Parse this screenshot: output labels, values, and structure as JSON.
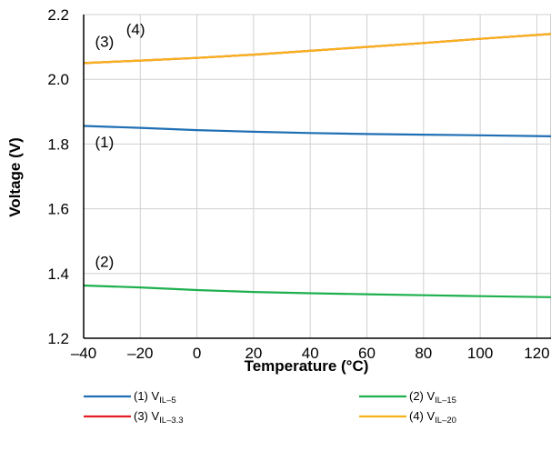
{
  "chart_data": {
    "type": "line",
    "xlabel": "Temperature (°C)",
    "ylabel": "Voltage (V)",
    "xlim": [
      -40,
      125
    ],
    "ylim": [
      1.2,
      2.2
    ],
    "x_ticks": [
      -40,
      -20,
      0,
      20,
      40,
      60,
      80,
      100,
      120
    ],
    "x_tick_labels": [
      "–40",
      "–20",
      "0",
      "20",
      "40",
      "60",
      "80",
      "100",
      "120"
    ],
    "y_ticks": [
      1.2,
      1.4,
      1.6,
      1.8,
      2.0,
      2.2
    ],
    "y_tick_labels": [
      "1.2",
      "1.4",
      "1.6",
      "1.8",
      "2.0",
      "2.2"
    ],
    "grid": true,
    "legend_position": "bottom",
    "series": [
      {
        "name": "(1) VIL–5",
        "label_main": "(1) V",
        "label_sub": "IL–5",
        "color": "#1f6fb4",
        "x": [
          -40,
          -20,
          0,
          20,
          40,
          60,
          80,
          100,
          125
        ],
        "y": [
          1.856,
          1.85,
          1.843,
          1.838,
          1.834,
          1.831,
          1.829,
          1.827,
          1.824
        ]
      },
      {
        "name": "(2) VIL–15",
        "label_main": "(2) V",
        "label_sub": "IL–15",
        "color": "#1db04d",
        "x": [
          -40,
          -20,
          0,
          20,
          40,
          60,
          80,
          100,
          125
        ],
        "y": [
          1.363,
          1.357,
          1.349,
          1.343,
          1.339,
          1.336,
          1.333,
          1.33,
          1.327
        ]
      },
      {
        "name": "(3) VIL–3.3",
        "label_main": "(3) V",
        "label_sub": "IL–3.3",
        "color": "#e41e26",
        "x": [
          -40,
          -20,
          0,
          20,
          40,
          60,
          80,
          100,
          125
        ],
        "y": [
          2.05,
          2.058,
          2.066,
          2.076,
          2.088,
          2.1,
          2.112,
          2.125,
          2.14
        ]
      },
      {
        "name": "(4) VIL–20",
        "label_main": "(4) V",
        "label_sub": "IL–20",
        "color": "#f7b21b",
        "x": [
          -40,
          -20,
          0,
          20,
          40,
          60,
          80,
          100,
          125
        ],
        "y": [
          2.05,
          2.058,
          2.066,
          2.076,
          2.088,
          2.1,
          2.112,
          2.125,
          2.14
        ]
      }
    ],
    "annotations": [
      {
        "text": "(1)",
        "x": -36,
        "y": 1.79
      },
      {
        "text": "(2)",
        "x": -36,
        "y": 1.42
      },
      {
        "text": "(3)",
        "x": -36,
        "y": 2.1
      },
      {
        "text": "(4)",
        "x": -25,
        "y": 2.138
      }
    ]
  }
}
